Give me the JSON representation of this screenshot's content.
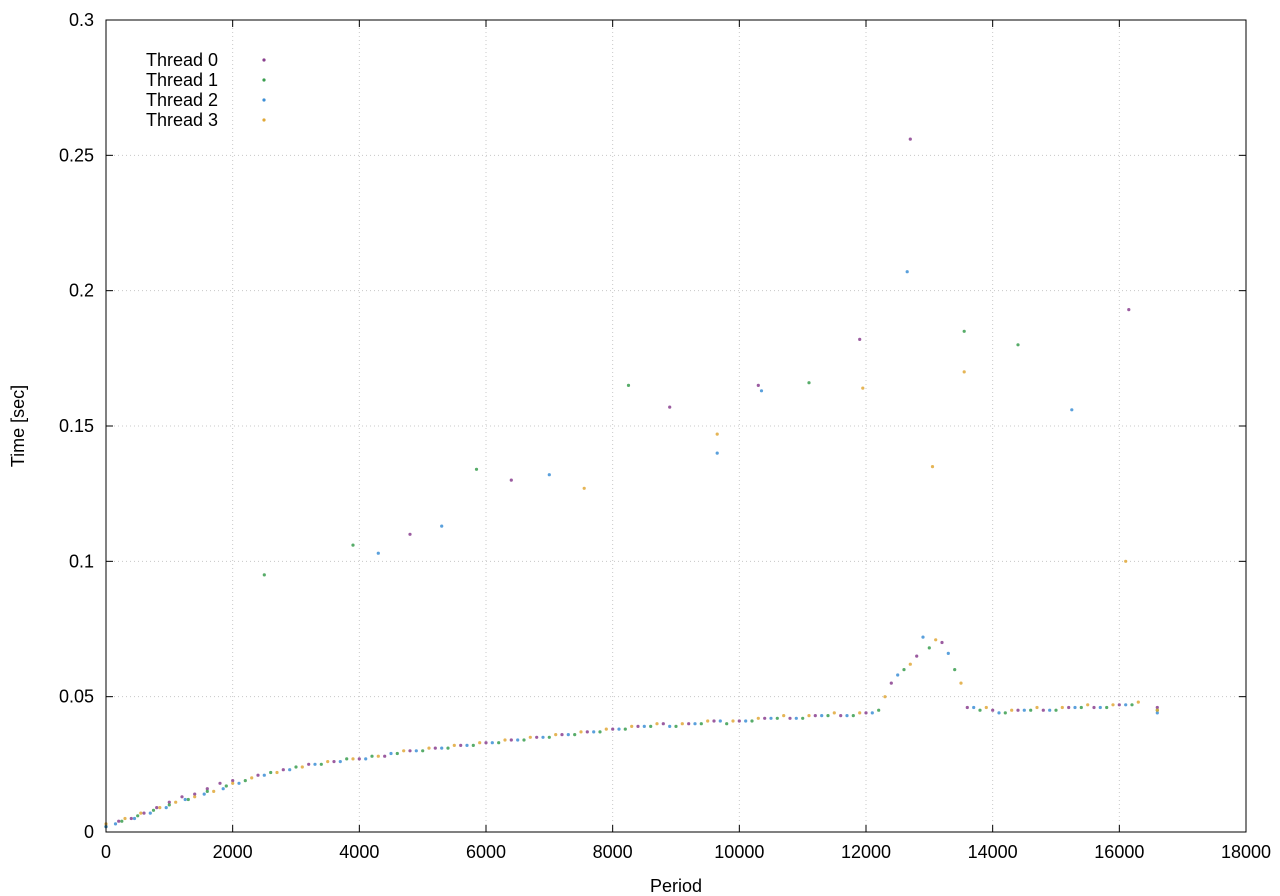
{
  "chart_data": {
    "type": "scatter",
    "title": "",
    "xlabel": "Period",
    "ylabel": "Time [sec]",
    "xlim": [
      0,
      18000
    ],
    "ylim": [
      0,
      0.3
    ],
    "x_ticks": [
      0,
      2000,
      4000,
      6000,
      8000,
      10000,
      12000,
      14000,
      16000,
      18000
    ],
    "y_ticks": [
      0,
      0.05,
      0.1,
      0.15,
      0.2,
      0.25,
      0.3
    ],
    "x_tick_labels": [
      "0",
      "2000",
      "4000",
      "6000",
      "8000",
      "10000",
      "12000",
      "14000",
      "16000",
      "18000"
    ],
    "y_tick_labels": [
      "0",
      "0.05",
      "0.1",
      "0.15",
      "0.2",
      "0.25",
      "0.3"
    ],
    "grid": true,
    "legend_position": "top-left",
    "series": [
      {
        "name": "Thread 0",
        "color": "#8a3f8f",
        "points": [
          [
            0,
            0.002
          ],
          [
            200,
            0.004
          ],
          [
            400,
            0.005
          ],
          [
            600,
            0.007
          ],
          [
            800,
            0.009
          ],
          [
            1000,
            0.011
          ],
          [
            1200,
            0.013
          ],
          [
            1400,
            0.014
          ],
          [
            1600,
            0.016
          ],
          [
            1800,
            0.018
          ],
          [
            2000,
            0.019
          ],
          [
            2400,
            0.021
          ],
          [
            2800,
            0.023
          ],
          [
            3200,
            0.025
          ],
          [
            3600,
            0.026
          ],
          [
            4000,
            0.027
          ],
          [
            4400,
            0.028
          ],
          [
            4800,
            0.03
          ],
          [
            5200,
            0.031
          ],
          [
            5600,
            0.032
          ],
          [
            6000,
            0.033
          ],
          [
            6400,
            0.034
          ],
          [
            6800,
            0.035
          ],
          [
            7200,
            0.036
          ],
          [
            7600,
            0.037
          ],
          [
            8000,
            0.038
          ],
          [
            8400,
            0.039
          ],
          [
            8800,
            0.04
          ],
          [
            9200,
            0.04
          ],
          [
            9600,
            0.041
          ],
          [
            10000,
            0.041
          ],
          [
            10400,
            0.042
          ],
          [
            10800,
            0.042
          ],
          [
            11200,
            0.043
          ],
          [
            11600,
            0.043
          ],
          [
            12000,
            0.044
          ],
          [
            12400,
            0.055
          ],
          [
            12800,
            0.065
          ],
          [
            13200,
            0.07
          ],
          [
            13600,
            0.046
          ],
          [
            14000,
            0.045
          ],
          [
            14400,
            0.045
          ],
          [
            14800,
            0.045
          ],
          [
            15200,
            0.046
          ],
          [
            15600,
            0.046
          ],
          [
            16000,
            0.047
          ],
          [
            16600,
            0.046
          ],
          [
            4800,
            0.11
          ],
          [
            6400,
            0.13
          ],
          [
            8900,
            0.157
          ],
          [
            10300,
            0.165
          ],
          [
            11900,
            0.182
          ],
          [
            12700,
            0.256
          ],
          [
            16150,
            0.193
          ]
        ]
      },
      {
        "name": "Thread 1",
        "color": "#3a9e4f",
        "points": [
          [
            0,
            0.002
          ],
          [
            250,
            0.004
          ],
          [
            500,
            0.006
          ],
          [
            750,
            0.008
          ],
          [
            1000,
            0.01
          ],
          [
            1300,
            0.012
          ],
          [
            1600,
            0.015
          ],
          [
            1900,
            0.017
          ],
          [
            2200,
            0.019
          ],
          [
            2600,
            0.022
          ],
          [
            3000,
            0.024
          ],
          [
            3400,
            0.025
          ],
          [
            3800,
            0.027
          ],
          [
            4200,
            0.028
          ],
          [
            4600,
            0.029
          ],
          [
            5000,
            0.03
          ],
          [
            5400,
            0.031
          ],
          [
            5800,
            0.032
          ],
          [
            6200,
            0.033
          ],
          [
            6600,
            0.034
          ],
          [
            7000,
            0.035
          ],
          [
            7400,
            0.036
          ],
          [
            7800,
            0.037
          ],
          [
            8200,
            0.038
          ],
          [
            8600,
            0.039
          ],
          [
            9000,
            0.039
          ],
          [
            9400,
            0.04
          ],
          [
            9800,
            0.04
          ],
          [
            10200,
            0.041
          ],
          [
            10600,
            0.042
          ],
          [
            11000,
            0.042
          ],
          [
            11400,
            0.043
          ],
          [
            11800,
            0.043
          ],
          [
            12200,
            0.045
          ],
          [
            12600,
            0.06
          ],
          [
            13000,
            0.068
          ],
          [
            13400,
            0.06
          ],
          [
            13800,
            0.045
          ],
          [
            14200,
            0.044
          ],
          [
            14600,
            0.045
          ],
          [
            15000,
            0.045
          ],
          [
            15400,
            0.046
          ],
          [
            15800,
            0.046
          ],
          [
            16200,
            0.047
          ],
          [
            16600,
            0.045
          ],
          [
            2500,
            0.095
          ],
          [
            3900,
            0.106
          ],
          [
            5850,
            0.134
          ],
          [
            8250,
            0.165
          ],
          [
            11100,
            0.166
          ],
          [
            13550,
            0.185
          ],
          [
            14400,
            0.18
          ]
        ]
      },
      {
        "name": "Thread 2",
        "color": "#3d8fd6",
        "points": [
          [
            0,
            0.002
          ],
          [
            150,
            0.003
          ],
          [
            450,
            0.005
          ],
          [
            700,
            0.007
          ],
          [
            950,
            0.009
          ],
          [
            1250,
            0.012
          ],
          [
            1550,
            0.014
          ],
          [
            1850,
            0.016
          ],
          [
            2100,
            0.018
          ],
          [
            2500,
            0.021
          ],
          [
            2900,
            0.023
          ],
          [
            3300,
            0.025
          ],
          [
            3700,
            0.026
          ],
          [
            4100,
            0.027
          ],
          [
            4500,
            0.029
          ],
          [
            4900,
            0.03
          ],
          [
            5300,
            0.031
          ],
          [
            5700,
            0.032
          ],
          [
            6100,
            0.033
          ],
          [
            6500,
            0.034
          ],
          [
            6900,
            0.035
          ],
          [
            7300,
            0.036
          ],
          [
            7700,
            0.037
          ],
          [
            8100,
            0.038
          ],
          [
            8500,
            0.039
          ],
          [
            8900,
            0.039
          ],
          [
            9300,
            0.04
          ],
          [
            9700,
            0.041
          ],
          [
            10100,
            0.041
          ],
          [
            10500,
            0.042
          ],
          [
            10900,
            0.042
          ],
          [
            11300,
            0.043
          ],
          [
            11700,
            0.043
          ],
          [
            12100,
            0.044
          ],
          [
            12500,
            0.058
          ],
          [
            12900,
            0.072
          ],
          [
            13300,
            0.066
          ],
          [
            13700,
            0.046
          ],
          [
            14100,
            0.044
          ],
          [
            14500,
            0.045
          ],
          [
            14900,
            0.045
          ],
          [
            15300,
            0.046
          ],
          [
            15700,
            0.046
          ],
          [
            16100,
            0.047
          ],
          [
            16600,
            0.044
          ],
          [
            4300,
            0.103
          ],
          [
            5300,
            0.113
          ],
          [
            7000,
            0.132
          ],
          [
            9650,
            0.14
          ],
          [
            10350,
            0.163
          ],
          [
            12650,
            0.207
          ],
          [
            15250,
            0.156
          ]
        ]
      },
      {
        "name": "Thread 3",
        "color": "#e0a838",
        "points": [
          [
            0,
            0.003
          ],
          [
            300,
            0.005
          ],
          [
            550,
            0.007
          ],
          [
            850,
            0.009
          ],
          [
            1100,
            0.011
          ],
          [
            1400,
            0.013
          ],
          [
            1700,
            0.015
          ],
          [
            2000,
            0.018
          ],
          [
            2300,
            0.02
          ],
          [
            2700,
            0.022
          ],
          [
            3100,
            0.024
          ],
          [
            3500,
            0.026
          ],
          [
            3900,
            0.027
          ],
          [
            4300,
            0.028
          ],
          [
            4700,
            0.03
          ],
          [
            5100,
            0.031
          ],
          [
            5500,
            0.032
          ],
          [
            5900,
            0.033
          ],
          [
            6300,
            0.034
          ],
          [
            6700,
            0.035
          ],
          [
            7100,
            0.036
          ],
          [
            7500,
            0.037
          ],
          [
            7900,
            0.038
          ],
          [
            8300,
            0.039
          ],
          [
            8700,
            0.04
          ],
          [
            9100,
            0.04
          ],
          [
            9500,
            0.041
          ],
          [
            9900,
            0.041
          ],
          [
            10300,
            0.042
          ],
          [
            10700,
            0.043
          ],
          [
            11100,
            0.043
          ],
          [
            11500,
            0.044
          ],
          [
            11900,
            0.044
          ],
          [
            12300,
            0.05
          ],
          [
            12700,
            0.062
          ],
          [
            13100,
            0.071
          ],
          [
            13500,
            0.055
          ],
          [
            13900,
            0.046
          ],
          [
            14300,
            0.045
          ],
          [
            14700,
            0.046
          ],
          [
            15100,
            0.046
          ],
          [
            15500,
            0.047
          ],
          [
            15900,
            0.047
          ],
          [
            16300,
            0.048
          ],
          [
            16600,
            0.045
          ],
          [
            7550,
            0.127
          ],
          [
            9650,
            0.147
          ],
          [
            11950,
            0.164
          ],
          [
            13050,
            0.135
          ],
          [
            13550,
            0.17
          ],
          [
            16100,
            0.1
          ]
        ]
      }
    ]
  }
}
